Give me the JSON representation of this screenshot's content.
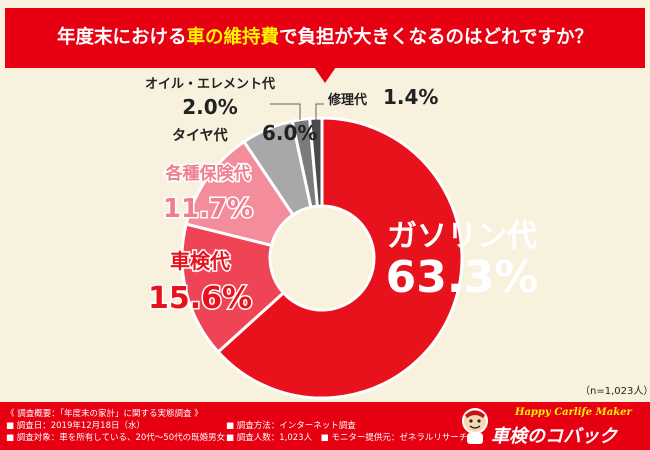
{
  "header": {
    "question_prefix": "年度末における",
    "question_highlight": "車の維持費",
    "question_suffix": "で負担が大きくなるのはどれですか？"
  },
  "sample_note": "（n=1,023人）",
  "footer": {
    "survey_overview": "《 調査概要：「年度末の家計」に関する実態調査 》",
    "survey_date": "■ 調査日：2019年12月18日（水）",
    "survey_subjects": "■ 調査対象：車を所有している、20代～50代の既婚男女",
    "survey_method": "■ 調査方法：インターネット調査",
    "survey_count": "■ 調査人数：1,023人",
    "survey_provider": "■ モニター提供元：ゼネラルリサーチ",
    "logo_tagline": "Happy Carlife Maker",
    "logo_name": "車検のコバック"
  },
  "colors": {
    "brand_red": "#e60012",
    "highlight_yellow": "#fff200",
    "background": "#f7f1de"
  },
  "chart_data": {
    "type": "pie",
    "donut": true,
    "title": "",
    "unit": "%",
    "categories": [
      "ガソリン代",
      "車検代",
      "各種保険代",
      "タイヤ代",
      "オイル・エレメント代",
      "修理代"
    ],
    "values": [
      63.3,
      15.6,
      11.7,
      6.0,
      2.0,
      1.4
    ],
    "value_labels": [
      "63.3%",
      "15.6%",
      "11.7%",
      "6.0%",
      "2.0%",
      "1.4%"
    ],
    "colors": [
      "#e8121d",
      "#ef4356",
      "#f38d9c",
      "#a8a8a8",
      "#7b7b7b",
      "#4a4a4a"
    ],
    "label_colors": [
      "#ffffff",
      "#e8121d",
      "#f07e8e",
      "#222222",
      "#222222",
      "#222222"
    ]
  }
}
